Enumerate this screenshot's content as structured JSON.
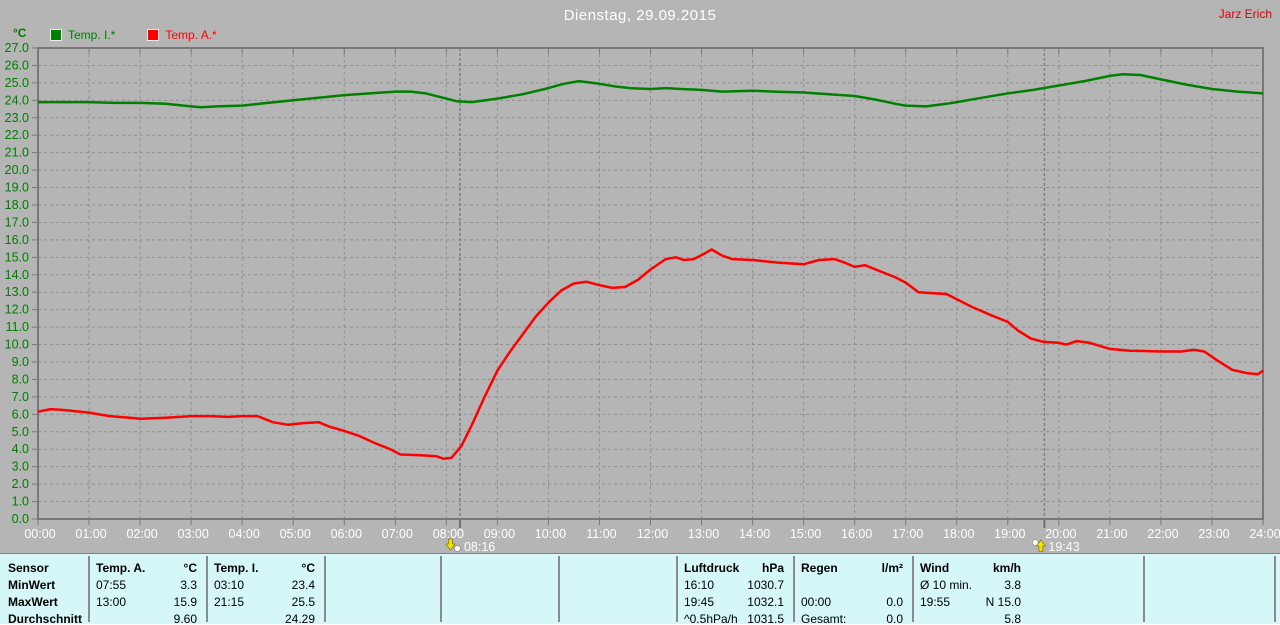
{
  "header": {
    "title": "Dienstag, 29.09.2015",
    "user": "Jarz Erich"
  },
  "legend": {
    "unit": "°C",
    "items": [
      {
        "label": "Temp. I.*",
        "color": "#008000"
      },
      {
        "label": "Temp. A.*",
        "color": "#ff0000"
      }
    ]
  },
  "markers": {
    "sunrise": {
      "time": "08:16",
      "hour": 8.267
    },
    "sunset": {
      "time": "19:43",
      "hour": 19.717
    }
  },
  "colors": {
    "background": "#b5b5b5",
    "grid": "#8f8f8f",
    "axis": "#787878",
    "marker_line": "#808080",
    "y_labels": "#007c00",
    "x_labels": "#ffffff",
    "title_text": "#ffffff",
    "user_text": "#dd0000",
    "panel_bg": "#d5f7f7",
    "sun_icon_yellow": "#f2e000"
  },
  "chart_data": {
    "type": "line",
    "title": "Dienstag, 29.09.2015",
    "xlabel": "",
    "ylabel": "°C",
    "xlim": [
      0,
      24
    ],
    "ylim": [
      0,
      27
    ],
    "y_tick_step": 1.0,
    "y_tick_decimals": 1,
    "grid": true,
    "legend_position": "top-left",
    "x_ticks": [
      "00:00",
      "01:00",
      "02:00",
      "03:00",
      "04:00",
      "05:00",
      "06:00",
      "07:00",
      "08:00",
      "09:00",
      "10:00",
      "11:00",
      "12:00",
      "13:00",
      "14:00",
      "15:00",
      "16:00",
      "17:00",
      "18:00",
      "19:00",
      "20:00",
      "21:00",
      "22:00",
      "23:00",
      "24:00"
    ],
    "series": [
      {
        "name": "Temp. I.*",
        "color": "#008000",
        "points": [
          [
            0,
            23.9
          ],
          [
            0.5,
            23.9
          ],
          [
            1,
            23.9
          ],
          [
            1.5,
            23.85
          ],
          [
            2,
            23.85
          ],
          [
            2.5,
            23.8
          ],
          [
            3,
            23.65
          ],
          [
            3.2,
            23.6
          ],
          [
            3.5,
            23.65
          ],
          [
            4,
            23.7
          ],
          [
            4.5,
            23.85
          ],
          [
            5,
            24.0
          ],
          [
            5.5,
            24.15
          ],
          [
            6,
            24.3
          ],
          [
            6.5,
            24.4
          ],
          [
            7,
            24.5
          ],
          [
            7.3,
            24.5
          ],
          [
            7.6,
            24.4
          ],
          [
            8,
            24.1
          ],
          [
            8.2,
            23.95
          ],
          [
            8.5,
            23.9
          ],
          [
            9,
            24.1
          ],
          [
            9.5,
            24.35
          ],
          [
            10,
            24.7
          ],
          [
            10.3,
            24.95
          ],
          [
            10.6,
            25.1
          ],
          [
            11,
            24.95
          ],
          [
            11.3,
            24.8
          ],
          [
            11.6,
            24.7
          ],
          [
            12,
            24.65
          ],
          [
            12.3,
            24.7
          ],
          [
            12.6,
            24.65
          ],
          [
            13,
            24.6
          ],
          [
            13.4,
            24.5
          ],
          [
            14,
            24.55
          ],
          [
            14.4,
            24.5
          ],
          [
            15,
            24.45
          ],
          [
            15.5,
            24.35
          ],
          [
            16,
            24.25
          ],
          [
            16.4,
            24.05
          ],
          [
            16.8,
            23.8
          ],
          [
            17,
            23.7
          ],
          [
            17.4,
            23.65
          ],
          [
            17.8,
            23.8
          ],
          [
            18,
            23.9
          ],
          [
            18.5,
            24.15
          ],
          [
            19,
            24.4
          ],
          [
            19.5,
            24.6
          ],
          [
            20,
            24.85
          ],
          [
            20.5,
            25.1
          ],
          [
            21,
            25.4
          ],
          [
            21.25,
            25.5
          ],
          [
            21.6,
            25.45
          ],
          [
            22,
            25.2
          ],
          [
            22.5,
            24.9
          ],
          [
            23,
            24.65
          ],
          [
            23.5,
            24.5
          ],
          [
            24,
            24.4
          ]
        ]
      },
      {
        "name": "Temp. A.*",
        "color": "#ff0000",
        "points": [
          [
            0,
            6.15
          ],
          [
            0.25,
            6.3
          ],
          [
            0.5,
            6.25
          ],
          [
            1,
            6.1
          ],
          [
            1.4,
            5.9
          ],
          [
            1.8,
            5.8
          ],
          [
            2,
            5.75
          ],
          [
            2.5,
            5.8
          ],
          [
            3,
            5.9
          ],
          [
            3.4,
            5.9
          ],
          [
            3.7,
            5.85
          ],
          [
            4,
            5.9
          ],
          [
            4.3,
            5.9
          ],
          [
            4.6,
            5.55
          ],
          [
            4.9,
            5.4
          ],
          [
            5.2,
            5.5
          ],
          [
            5.5,
            5.55
          ],
          [
            5.7,
            5.3
          ],
          [
            6,
            5.05
          ],
          [
            6.3,
            4.75
          ],
          [
            6.6,
            4.35
          ],
          [
            6.9,
            4.0
          ],
          [
            7.1,
            3.7
          ],
          [
            7.5,
            3.65
          ],
          [
            7.8,
            3.6
          ],
          [
            7.95,
            3.45
          ],
          [
            8.1,
            3.5
          ],
          [
            8.3,
            4.2
          ],
          [
            8.5,
            5.4
          ],
          [
            8.75,
            7.0
          ],
          [
            9,
            8.5
          ],
          [
            9.25,
            9.6
          ],
          [
            9.5,
            10.6
          ],
          [
            9.75,
            11.6
          ],
          [
            10,
            12.4
          ],
          [
            10.25,
            13.1
          ],
          [
            10.5,
            13.5
          ],
          [
            10.75,
            13.6
          ],
          [
            11,
            13.4
          ],
          [
            11.25,
            13.25
          ],
          [
            11.5,
            13.3
          ],
          [
            11.75,
            13.7
          ],
          [
            12,
            14.3
          ],
          [
            12.3,
            14.9
          ],
          [
            12.5,
            15.0
          ],
          [
            12.65,
            14.85
          ],
          [
            12.85,
            14.9
          ],
          [
            13.05,
            15.2
          ],
          [
            13.2,
            15.45
          ],
          [
            13.4,
            15.1
          ],
          [
            13.6,
            14.9
          ],
          [
            14,
            14.85
          ],
          [
            14.5,
            14.7
          ],
          [
            15,
            14.6
          ],
          [
            15.3,
            14.85
          ],
          [
            15.6,
            14.9
          ],
          [
            15.8,
            14.7
          ],
          [
            16,
            14.45
          ],
          [
            16.2,
            14.55
          ],
          [
            16.5,
            14.2
          ],
          [
            16.8,
            13.85
          ],
          [
            17,
            13.55
          ],
          [
            17.25,
            13.0
          ],
          [
            17.5,
            12.95
          ],
          [
            17.8,
            12.9
          ],
          [
            18,
            12.6
          ],
          [
            18.3,
            12.15
          ],
          [
            18.7,
            11.65
          ],
          [
            19,
            11.3
          ],
          [
            19.2,
            10.8
          ],
          [
            19.45,
            10.35
          ],
          [
            19.7,
            10.15
          ],
          [
            20,
            10.1
          ],
          [
            20.15,
            10.0
          ],
          [
            20.35,
            10.2
          ],
          [
            20.6,
            10.1
          ],
          [
            21,
            9.75
          ],
          [
            21.4,
            9.65
          ],
          [
            22,
            9.6
          ],
          [
            22.4,
            9.6
          ],
          [
            22.65,
            9.7
          ],
          [
            22.85,
            9.6
          ],
          [
            23.1,
            9.1
          ],
          [
            23.4,
            8.55
          ],
          [
            23.7,
            8.35
          ],
          [
            23.9,
            8.3
          ],
          [
            24,
            8.5
          ]
        ]
      }
    ]
  },
  "table": {
    "row_labels": [
      "Sensor",
      "MinWert",
      "MaxWert",
      "Durchschnitt"
    ],
    "columns": [
      {
        "header": "Temp. A.",
        "unit": "°C",
        "rows": [
          [
            "07:55",
            "3.3"
          ],
          [
            "13:00",
            "15.9"
          ],
          [
            "",
            "9.60"
          ]
        ]
      },
      {
        "header": "Temp. I.",
        "unit": "°C",
        "rows": [
          [
            "03:10",
            "23.4"
          ],
          [
            "21:15",
            "25.5"
          ],
          [
            "",
            "24.29"
          ]
        ]
      },
      {
        "header": "",
        "unit": "",
        "rows": [
          [
            "",
            ""
          ],
          [
            "",
            ""
          ],
          [
            "",
            ""
          ]
        ]
      },
      {
        "header": "",
        "unit": "",
        "rows": [
          [
            "",
            ""
          ],
          [
            "",
            ""
          ],
          [
            "",
            ""
          ]
        ]
      },
      {
        "header": "",
        "unit": "",
        "rows": [
          [
            "",
            ""
          ],
          [
            "",
            ""
          ],
          [
            "",
            ""
          ]
        ]
      },
      {
        "header": "Luftdruck",
        "unit": "hPa",
        "rows": [
          [
            "16:10",
            "1030.7"
          ],
          [
            "19:45",
            "1032.1"
          ],
          [
            "^0.5hPa/h",
            "1031.5"
          ]
        ]
      },
      {
        "header": "Regen",
        "unit": "l/m²",
        "rows": [
          [
            "",
            ""
          ],
          [
            "00:00",
            "0.0"
          ],
          [
            "Gesamt:",
            "0.0"
          ]
        ]
      },
      {
        "header": "Wind",
        "unit": "km/h",
        "rows": [
          [
            "Ø 10 min.",
            "3.8"
          ],
          [
            "19:55",
            "N 15.0"
          ],
          [
            "",
            "5.8"
          ]
        ]
      }
    ]
  }
}
